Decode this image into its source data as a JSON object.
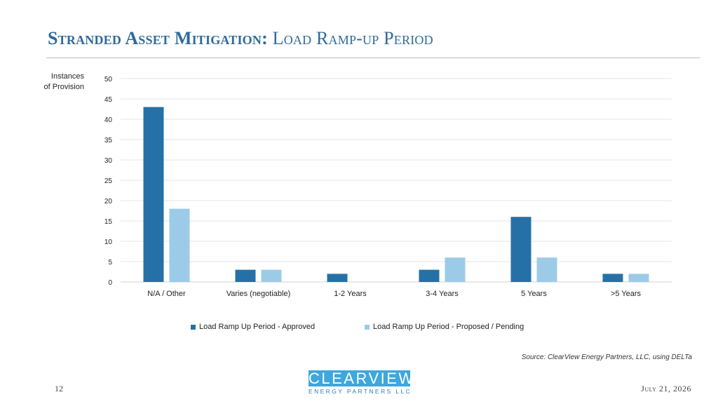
{
  "slide": {
    "title_main": "Stranded Asset Mitigation:",
    "title_sub": "Load Ramp-up Period",
    "page_number": "12",
    "date": "July 21, 2026",
    "source": "Source: ClearView Energy Partners, LLC, using DELTa"
  },
  "logo": {
    "name": "CLEARVIEW",
    "subtitle": "ENERGY PARTNERS LLC"
  },
  "chart_data": {
    "type": "bar",
    "title": "",
    "ylabel_line1": "Instances",
    "ylabel_line2": "of Provision",
    "xlabel": "",
    "categories": [
      "N/A / Other",
      "Varies (negotiable)",
      "1-2 Years",
      "3-4 Years",
      "5 Years",
      ">5 Years"
    ],
    "series": [
      {
        "name": "Load Ramp Up Period - Approved",
        "values": [
          43,
          3,
          2,
          3,
          16,
          2
        ],
        "color": "#2571a7"
      },
      {
        "name": "Load Ramp Up Period - Proposed / Pending",
        "values": [
          18,
          3,
          0,
          6,
          6,
          2
        ],
        "color": "#9ccbe8"
      }
    ],
    "ylim": [
      0,
      50
    ],
    "yticks": [
      0,
      5,
      10,
      15,
      20,
      25,
      30,
      35,
      40,
      45,
      50
    ],
    "grid": true,
    "legend_position": "bottom"
  }
}
